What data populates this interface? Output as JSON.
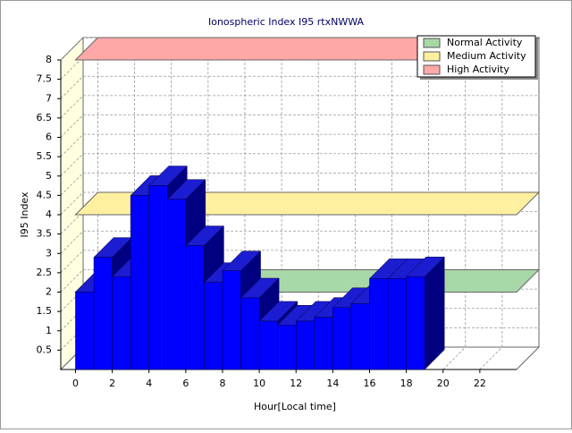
{
  "chart_data": {
    "type": "bar3d",
    "title": "Ionospheric Index I95 rtxNWWA",
    "y_label": "I95 Index",
    "x_label": "Hour[Local time]",
    "x": [
      0,
      1,
      2,
      3,
      4,
      5,
      6,
      7,
      8,
      9,
      10,
      11,
      12,
      13,
      14,
      15,
      16,
      17,
      18
    ],
    "values": [
      2.0,
      2.9,
      2.4,
      4.5,
      4.75,
      4.4,
      3.2,
      2.25,
      2.55,
      1.85,
      1.25,
      1.15,
      1.25,
      1.35,
      1.6,
      1.7,
      2.35,
      2.35,
      2.4
    ],
    "color": "#0000ff",
    "xlim": [
      -0.8,
      24
    ],
    "xticks": [
      0,
      2,
      4,
      6,
      8,
      10,
      12,
      14,
      16,
      18,
      20,
      22
    ],
    "ylim": [
      0,
      8
    ],
    "yticks": [
      0.5,
      1,
      1.5,
      2,
      2.5,
      3,
      3.5,
      4,
      4.5,
      5,
      5.5,
      6,
      6.5,
      7,
      7.5,
      8
    ],
    "grid": true,
    "legend": "top-right",
    "bands": [
      {
        "name": "Normal Activity",
        "value": 2,
        "color": "#a8d8a8"
      },
      {
        "name": "Medium Activity",
        "value": 4,
        "color": "#fff0a0"
      },
      {
        "name": "High Activity",
        "value": 8,
        "color": "#ffa8a8"
      }
    ]
  }
}
